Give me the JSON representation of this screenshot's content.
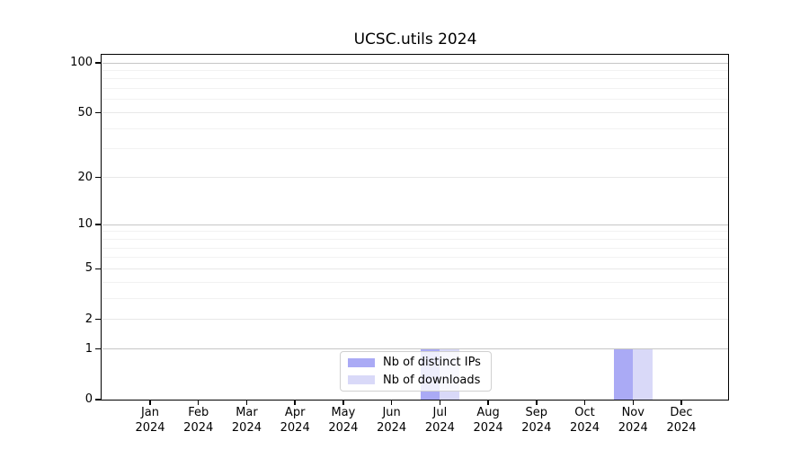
{
  "chart_data": {
    "type": "bar",
    "title": "UCSC.utils 2024",
    "y_scale": "log1p",
    "ylim": [
      0,
      113
    ],
    "grid": true,
    "legend_position": "bottom-center-inside",
    "x_months": [
      "Jan",
      "Feb",
      "Mar",
      "Apr",
      "May",
      "Jun",
      "Jul",
      "Aug",
      "Sep",
      "Oct",
      "Nov",
      "Dec"
    ],
    "x_year": "2024",
    "y_ticks": [
      0,
      1,
      2,
      5,
      10,
      20,
      50,
      100
    ],
    "y_major_gridlines": [
      1,
      10,
      100
    ],
    "y_mid_gridlines": [
      2,
      5,
      20,
      50
    ],
    "y_minor_gridlines": [
      3,
      4,
      6,
      7,
      8,
      9,
      30,
      40,
      60,
      70,
      80,
      90
    ],
    "series": [
      {
        "name": "Nb of distinct IPs",
        "color": "#aaaaf5",
        "values": [
          0,
          0,
          0,
          0,
          0,
          0,
          1,
          0,
          0,
          0,
          1,
          0
        ]
      },
      {
        "name": "Nb of downloads",
        "color": "#d9d9f8",
        "values": [
          0,
          0,
          0,
          0,
          0,
          0,
          1,
          0,
          0,
          0,
          1,
          0
        ]
      }
    ],
    "colors": {
      "grid_major": "#c6c6c6",
      "grid_mid": "#e8e8e8",
      "grid_minor": "#f2f2f2",
      "spine": "#000000"
    }
  }
}
